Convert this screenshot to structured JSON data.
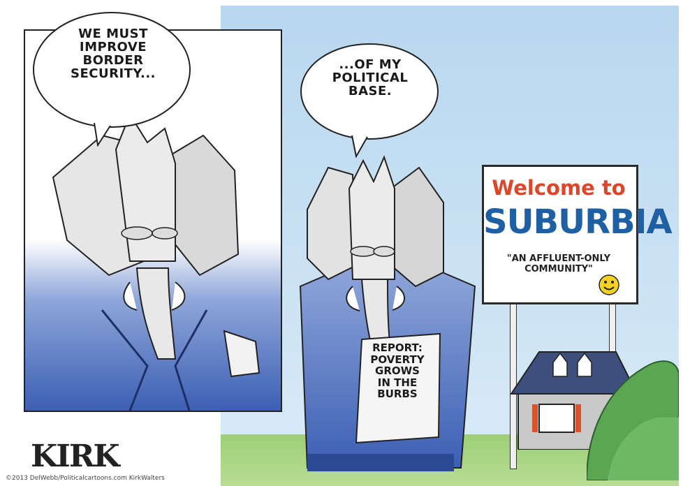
{
  "panel1": {
    "speech": "WE MUST IMPROVE BORDER SECURITY..."
  },
  "panel2": {
    "speech": "...OF MY POLITICAL BASE.",
    "report_lines": [
      "REPORT:",
      "POVERTY",
      "GROWS",
      "IN THE",
      "BURBS"
    ]
  },
  "sign": {
    "welcome": "Welcome to",
    "town": "SUBURBIA",
    "tagline": "\"AN AFFLUENT-ONLY COMMUNITY\"",
    "colors": {
      "welcome": "#e0452a",
      "town": "#1f5fa3",
      "smiley": "#f4d21f"
    }
  },
  "signature": "KIRK",
  "credit": "©2013 DelWebb/Politicalcartoons.com  KirkWalters"
}
